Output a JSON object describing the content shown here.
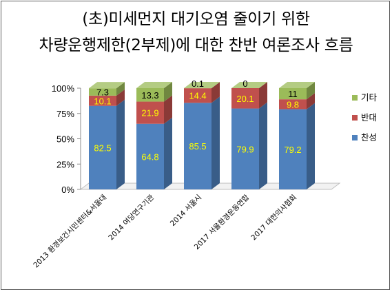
{
  "chart_data": {
    "type": "bar",
    "stacked": true,
    "percent": true,
    "title": "(초)미세먼지 대기오염 줄이기 위한",
    "subtitle": "차량운행제한(2부제)에 대한 찬반 여론조사 흐름",
    "categories": [
      "2013 환경보건시민센터&서울대",
      "2014 여당연구기관",
      "2014 서울시",
      "2017 서울환경운동연합",
      "2017 대한의사협회"
    ],
    "series": [
      {
        "name": "찬성",
        "color": "#4F81BD",
        "labelColor": "#FFFF00",
        "values": [
          82.5,
          64.8,
          85.5,
          79.9,
          79.2
        ]
      },
      {
        "name": "반대",
        "color": "#C0504D",
        "labelColor": "#FFFF00",
        "values": [
          10.1,
          21.9,
          14.4,
          20.1,
          9.8
        ]
      },
      {
        "name": "기타",
        "color": "#9BBB59",
        "labelColor": "#000000",
        "values": [
          7.3,
          13.3,
          0.1,
          0,
          11
        ]
      }
    ],
    "yticks": [
      "0%",
      "25%",
      "50%",
      "75%",
      "100%"
    ],
    "ylim": [
      0,
      100
    ],
    "legend": "right",
    "grid": false
  }
}
